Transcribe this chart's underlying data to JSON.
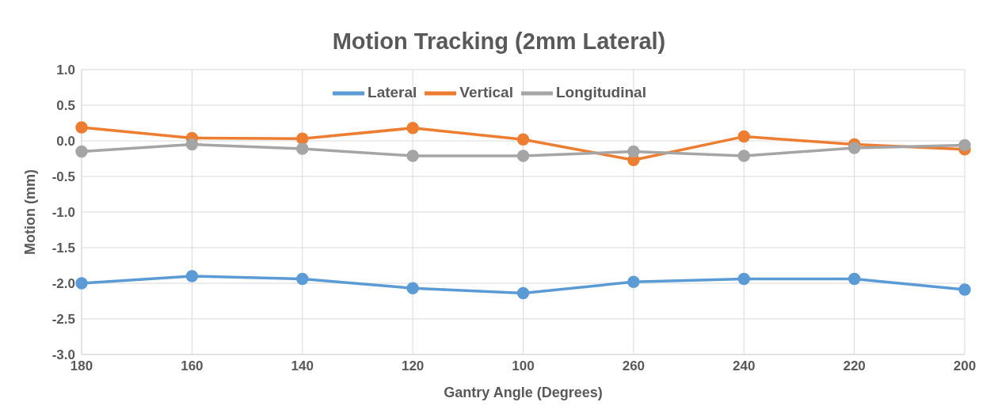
{
  "chart_data": {
    "type": "line",
    "title": "Motion Tracking (2mm Lateral)",
    "xlabel": "Gantry Angle (Degrees)",
    "ylabel": "Motion (mm)",
    "categories": [
      "180",
      "160",
      "140",
      "120",
      "100",
      "260",
      "240",
      "220",
      "200"
    ],
    "series": [
      {
        "name": "Lateral",
        "color": "#5b9bd5",
        "values": [
          -2.0,
          -1.9,
          -1.94,
          -2.07,
          -2.14,
          -1.98,
          -1.94,
          -1.94,
          -2.09
        ]
      },
      {
        "name": "Vertical",
        "color": "#ed7d31",
        "values": [
          0.19,
          0.04,
          0.03,
          0.18,
          0.02,
          -0.27,
          0.06,
          -0.05,
          -0.12
        ]
      },
      {
        "name": "Longitudinal",
        "color": "#a5a5a5",
        "values": [
          -0.15,
          -0.05,
          -0.11,
          -0.21,
          -0.21,
          -0.15,
          -0.21,
          -0.1,
          -0.06
        ]
      }
    ],
    "ylim": [
      -3.0,
      1.0
    ],
    "yticks": [
      {
        "value": -3,
        "label": "-3.0"
      },
      -2.5,
      {
        "value": -2,
        "label": "-2.0"
      },
      -1.5,
      {
        "value": -1,
        "label": "-1.0"
      },
      -0.5,
      {
        "value": 0,
        "label": "0.0"
      },
      0.5,
      {
        "value": 1,
        "label": "1.0"
      }
    ],
    "grid": true,
    "legend": "top",
    "marker": "circle",
    "line_style": "solid"
  }
}
